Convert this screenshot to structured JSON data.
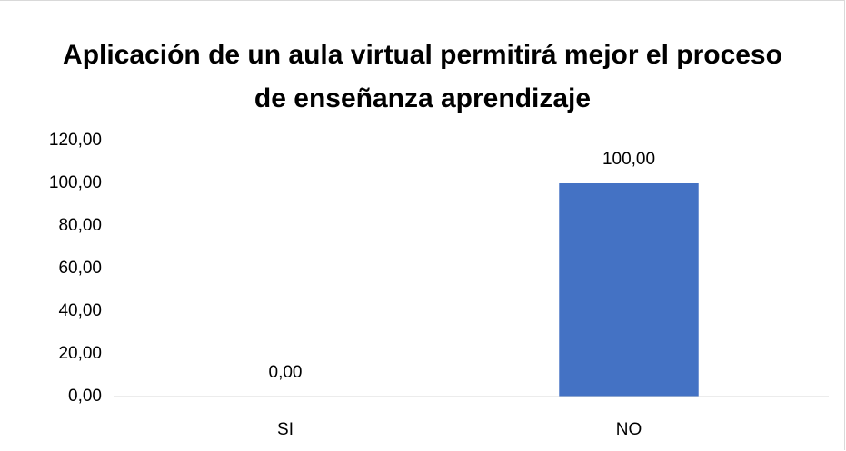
{
  "chart_data": {
    "type": "bar",
    "title": "Aplicación de un aula virtual permitirá mejor el proceso de enseñanza aprendizaje",
    "categories": [
      "SI",
      "NO"
    ],
    "values": [
      0,
      100
    ],
    "value_labels": [
      "0,00",
      "100,00"
    ],
    "color": "#4472c4",
    "ylim": [
      0,
      120
    ],
    "yticks": [
      {
        "value": 0,
        "label": "0,00"
      },
      {
        "value": 20,
        "label": "20,00"
      },
      {
        "value": 40,
        "label": "40,00"
      },
      {
        "value": 60,
        "label": "60,00"
      },
      {
        "value": 80,
        "label": "80,00"
      },
      {
        "value": 100,
        "label": "100,00"
      },
      {
        "value": 120,
        "label": "120,00"
      }
    ],
    "grid": false
  }
}
